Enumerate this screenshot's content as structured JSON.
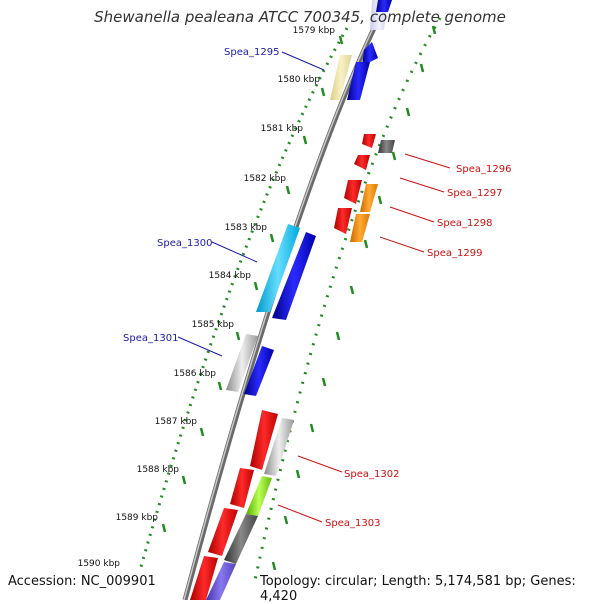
{
  "title": "Shewanella pealeana ATCC 700345, complete genome",
  "footer": {
    "accession": "Accession: NC_009901",
    "stats": "Topology: circular; Length: 5,174,581 bp; Genes: 4,420"
  },
  "colors": {
    "forward": "#0000ee",
    "reverse": "#ee0000",
    "forward_label": "#1a1aaa",
    "reverse_label": "#cc1111",
    "tick": "#228b22",
    "backbone": "#888888"
  },
  "ticks": [
    "1579 kbp",
    "1580 kbp",
    "1581 kbp",
    "1582 kbp",
    "1583 kbp",
    "1584 kbp",
    "1585 kbp",
    "1586 kbp",
    "1587 kbp",
    "1588 kbp",
    "1589 kbp",
    "1590 kbp"
  ],
  "gene_labels": [
    {
      "text": "Spea_1295",
      "strand": "forward"
    },
    {
      "text": "Spea_1300",
      "strand": "forward"
    },
    {
      "text": "Spea_1301",
      "strand": "forward"
    },
    {
      "text": "Spea_1296",
      "strand": "reverse"
    },
    {
      "text": "Spea_1297",
      "strand": "reverse"
    },
    {
      "text": "Spea_1298",
      "strand": "reverse"
    },
    {
      "text": "Spea_1299",
      "strand": "reverse"
    },
    {
      "text": "Spea_1302",
      "strand": "reverse"
    },
    {
      "text": "Spea_1303",
      "strand": "reverse"
    }
  ]
}
